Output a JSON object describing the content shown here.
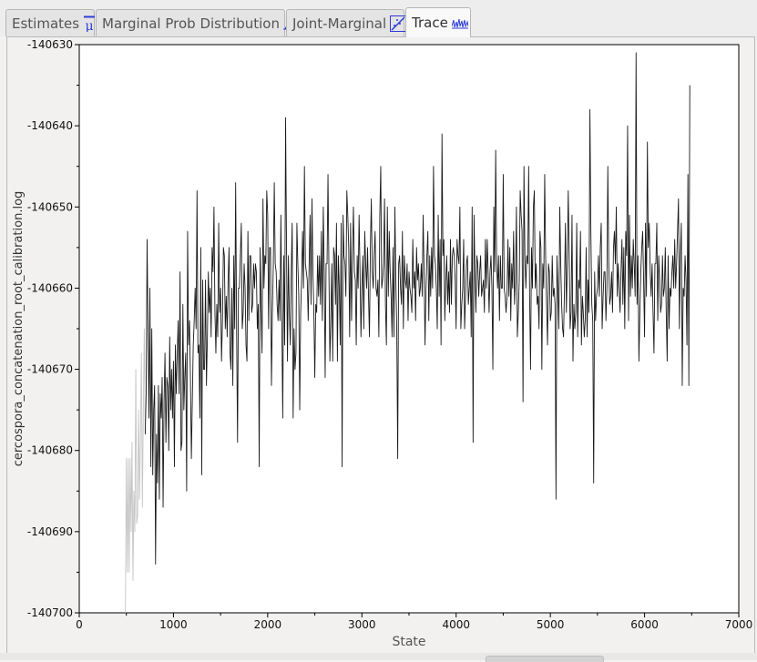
{
  "tabs": [
    {
      "label": "Estimates",
      "icon": "mean-mu-icon",
      "active": false
    },
    {
      "label": "Marginal Prob Distribution",
      "icon": "density-peak-icon",
      "active": false
    },
    {
      "label": "Joint-Marginal",
      "icon": "scatter-diagonal-icon",
      "active": false
    },
    {
      "label": "Trace",
      "icon": "trace-wave-icon",
      "active": true
    }
  ],
  "colors": {
    "icon_blue": "#2e3cd6",
    "trace_dark": "#1a1a1a",
    "trace_burnin": "#c4c4c4",
    "plot_bg": "#ffffff"
  },
  "chart_data": {
    "type": "line",
    "title": "",
    "xlabel": "State",
    "ylabel": "cercospora_concatenation_root_calibration.log",
    "xlim": [
      0,
      7000
    ],
    "ylim": [
      -140700,
      -140630
    ],
    "xticks": [
      0,
      1000,
      2000,
      3000,
      4000,
      5000,
      6000,
      7000
    ],
    "yticks": [
      -140630,
      -140640,
      -140650,
      -140660,
      -140670,
      -140680,
      -140690,
      -140700
    ],
    "xtick_labels": [
      "0",
      "1000",
      "2000",
      "3000",
      "4000",
      "5000",
      "6000",
      "7000"
    ],
    "ytick_labels": [
      "-140630",
      "-140640",
      "-140650",
      "-140660",
      "-140670",
      "-140680",
      "-140690",
      "-140700"
    ],
    "burnin_end": 700,
    "sample_interval": 10,
    "series": [
      {
        "name": "burn-in",
        "x_start": 490,
        "x_step": 10,
        "values": [
          -140700,
          -140681,
          -140695,
          -140681,
          -140695,
          -140681,
          -140690,
          -140679,
          -140696,
          -140685,
          -140690,
          -140670,
          -140689,
          -140688,
          -140675,
          -140686,
          -140678,
          -140668,
          -140687,
          -140675,
          -140665,
          -140678
        ]
      },
      {
        "name": "sampled",
        "x_start": 700,
        "x_step": 10,
        "values": [
          -140678,
          -140673,
          -140654,
          -140665,
          -140676,
          -140660,
          -140682,
          -140665,
          -140683,
          -140675,
          -140672,
          -140694,
          -140678,
          -140684,
          -140672,
          -140686,
          -140673,
          -140676,
          -140671,
          -140687,
          -140674,
          -140668,
          -140679,
          -140671,
          -140672,
          -140680,
          -140666,
          -140675,
          -140670,
          -140676,
          -140669,
          -140682,
          -140667,
          -140673,
          -140668,
          -140664,
          -140673,
          -140658,
          -140680,
          -140679,
          -140662,
          -140675,
          -140671,
          -140668,
          -140685,
          -140653,
          -140667,
          -140664,
          -140671,
          -140681,
          -140674,
          -140667,
          -140664,
          -140660,
          -140665,
          -140648,
          -140668,
          -140667,
          -140676,
          -140655,
          -140683,
          -140659,
          -140670,
          -140670,
          -140659,
          -140672,
          -140666,
          -140658,
          -140663,
          -140660,
          -140666,
          -140655,
          -140658,
          -140650,
          -140663,
          -140668,
          -140662,
          -140666,
          -140652,
          -140663,
          -140660,
          -140669,
          -140664,
          -140655,
          -140656,
          -140665,
          -140661,
          -140666,
          -140659,
          -140655,
          -140668,
          -140670,
          -140660,
          -140672,
          -140656,
          -140665,
          -140647,
          -140665,
          -140679,
          -140660,
          -140660,
          -140656,
          -140652,
          -140665,
          -140663,
          -140657,
          -140660,
          -140667,
          -140669,
          -140653,
          -140664,
          -140656,
          -140656,
          -140663,
          -140662,
          -140657,
          -140660,
          -140657,
          -140658,
          -140665,
          -140662,
          -140682,
          -140655,
          -140662,
          -140668,
          -140649,
          -140660,
          -140656,
          -140657,
          -140648,
          -140651,
          -140665,
          -140655,
          -140655,
          -140672,
          -140663,
          -140657,
          -140647,
          -140657,
          -140658,
          -140662,
          -140664,
          -140659,
          -140664,
          -140651,
          -140664,
          -140676,
          -140656,
          -140667,
          -140639,
          -140655,
          -140669,
          -140656,
          -140663,
          -140667,
          -140658,
          -140652,
          -140676,
          -140665,
          -140670,
          -140668,
          -140652,
          -140657,
          -140661,
          -140675,
          -140663,
          -140659,
          -140653,
          -140660,
          -140645,
          -140657,
          -140658,
          -140659,
          -140664,
          -140657,
          -140651,
          -140662,
          -140649,
          -140658,
          -140663,
          -140671,
          -140662,
          -140663,
          -140656,
          -140661,
          -140656,
          -140662,
          -140653,
          -140664,
          -140650,
          -140658,
          -140671,
          -140657,
          -140657,
          -140646,
          -140658,
          -140669,
          -140664,
          -140657,
          -140669,
          -140655,
          -140656,
          -140662,
          -140652,
          -140669,
          -140656,
          -140660,
          -140667,
          -140652,
          -140682,
          -140651,
          -140656,
          -140657,
          -140661,
          -140648,
          -140651,
          -140655,
          -140666,
          -140652,
          -140664,
          -140656,
          -140650,
          -140658,
          -140659,
          -140667,
          -140656,
          -140660,
          -140651,
          -140658,
          -140666,
          -140660,
          -140656,
          -140665,
          -140653,
          -140657,
          -140660,
          -140655,
          -140661,
          -140666,
          -140655,
          -140649,
          -140658,
          -140660,
          -140656,
          -140653,
          -140660,
          -140661,
          -140659,
          -140666,
          -140651,
          -140645,
          -140660,
          -140659,
          -140657,
          -140649,
          -140662,
          -140667,
          -140650,
          -140661,
          -140653,
          -140658,
          -140661,
          -140666,
          -140655,
          -140666,
          -140650,
          -140659,
          -140665,
          -140681,
          -140657,
          -140656,
          -140660,
          -140662,
          -140653,
          -140665,
          -140656,
          -140659,
          -140660,
          -140657,
          -140664,
          -140658,
          -140660,
          -140661,
          -140663,
          -140654,
          -140660,
          -140658,
          -140664,
          -140655,
          -140659,
          -140657,
          -140661,
          -140660,
          -140657,
          -140661,
          -140651,
          -140658,
          -140667,
          -140660,
          -140656,
          -140653,
          -140664,
          -140656,
          -140661,
          -140655,
          -140660,
          -140645,
          -140656,
          -140657,
          -140660,
          -140665,
          -140651,
          -140661,
          -140654,
          -140667,
          -140641,
          -140656,
          -140654,
          -140664,
          -140659,
          -140656,
          -140662,
          -140658,
          -140663,
          -140654,
          -140662,
          -140656,
          -140655,
          -140656,
          -140659,
          -140665,
          -140654,
          -140656,
          -140657,
          -140650,
          -140665,
          -140662,
          -140660,
          -140654,
          -140665,
          -140661,
          -140657,
          -140656,
          -140662,
          -140660,
          -140658,
          -140666,
          -140650,
          -140679,
          -140651,
          -140658,
          -140663,
          -140656,
          -140657,
          -140661,
          -140658,
          -140656,
          -140661,
          -140660,
          -140659,
          -140663,
          -140654,
          -140660,
          -140654,
          -140658,
          -140663,
          -140658,
          -140656,
          -140660,
          -140670,
          -140650,
          -140658,
          -140643,
          -140657,
          -140660,
          -140656,
          -140664,
          -140656,
          -140660,
          -140660,
          -140646,
          -140660,
          -140661,
          -140663,
          -140661,
          -140654,
          -140661,
          -140655,
          -140664,
          -140657,
          -140660,
          -140653,
          -140662,
          -140659,
          -140650,
          -140666,
          -140663,
          -140659,
          -140648,
          -140651,
          -140653,
          -140674,
          -140645,
          -140656,
          -140660,
          -140656,
          -140657,
          -140645,
          -140661,
          -140670,
          -140655,
          -140660,
          -140650,
          -140648,
          -140660,
          -140657,
          -140662,
          -140661,
          -140665,
          -140653,
          -140655,
          -140670,
          -140657,
          -140660,
          -140646,
          -140656,
          -140662,
          -140667,
          -140657,
          -140658,
          -140664,
          -140663,
          -140656,
          -140661,
          -140660,
          -140662,
          -140686,
          -140656,
          -140660,
          -140665,
          -140650,
          -140657,
          -140662,
          -140665,
          -140666,
          -140660,
          -140652,
          -140663,
          -140657,
          -140648,
          -140656,
          -140665,
          -140663,
          -140651,
          -140669,
          -140662,
          -140665,
          -140663,
          -140652,
          -140666,
          -140659,
          -140660,
          -140653,
          -140667,
          -140661,
          -140663,
          -140666,
          -140664,
          -140655,
          -140666,
          -140659,
          -140663,
          -140638,
          -140653,
          -140662,
          -140664,
          -140684,
          -140658,
          -140664,
          -140661,
          -140660,
          -140656,
          -140661,
          -140655,
          -140652,
          -140665,
          -140661,
          -140658,
          -140658,
          -140664,
          -140660,
          -140645,
          -140657,
          -140662,
          -140661,
          -140658,
          -140663,
          -140655,
          -140653,
          -140657,
          -140650,
          -140661,
          -140657,
          -140660,
          -140663,
          -140658,
          -140654,
          -140662,
          -140655,
          -140665,
          -140653,
          -140656,
          -140640,
          -140664,
          -140651,
          -140661,
          -140656,
          -140660,
          -140654,
          -140657,
          -140661,
          -140631,
          -140662,
          -140656,
          -140669,
          -140663,
          -140658,
          -140655,
          -140653,
          -140659,
          -140666,
          -140652,
          -140661,
          -140642,
          -140655,
          -140652,
          -140658,
          -140661,
          -140657,
          -140663,
          -140668,
          -140657,
          -140657,
          -140652,
          -140664,
          -140656,
          -140659,
          -140663,
          -140662,
          -140656,
          -140661,
          -140660,
          -140655,
          -140663,
          -140669,
          -140656,
          -140665,
          -140660,
          -140661,
          -140658,
          -140656,
          -140660,
          -140654,
          -140660,
          -140657,
          -140653,
          -140649,
          -140665,
          -140656,
          -140652,
          -140672,
          -140660,
          -140661,
          -140656,
          -140659,
          -140667,
          -140646,
          -140672,
          -140635
        ]
      }
    ]
  }
}
